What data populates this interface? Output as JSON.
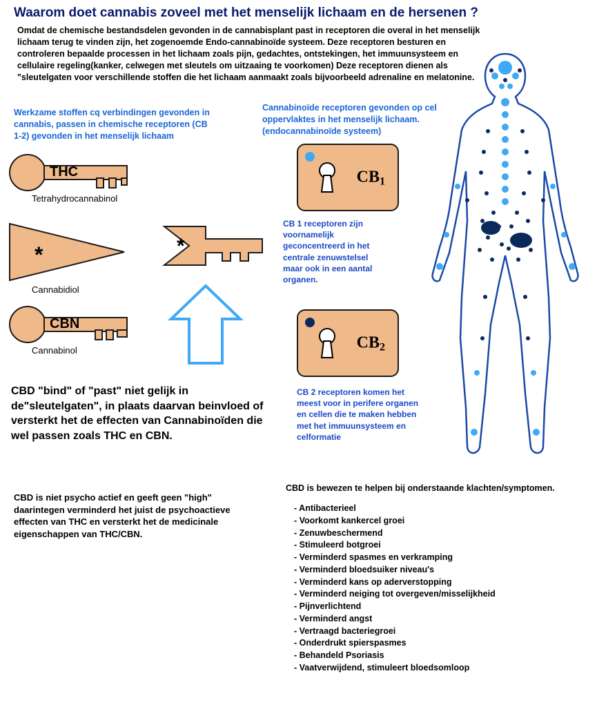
{
  "title": "Waarom doet cannabis zoveel met het menselijk lichaam en de hersenen ?",
  "intro": "Omdat de chemische bestandsdelen gevonden in de cannabisplant past in receptoren die overal in het menselijk lichaam terug te vinden zijn, het zogenoemde Endo-cannabinoïde systeem. Deze receptoren besturen en controleren bepaalde processen in het lichaam zoals pijn, gedachtes, ontstekingen, het immuunsysteem en cellulaire regeling(kanker, celwegen met sleutels om uitzaaing te voorkomen) Deze receptoren dienen als \"sleutelgaten voor verschillende stoffen die het lichaam aanmaakt zoals bijvoorbeeld adrenaline en melatonine.",
  "left_blue": "Werkzame stoffen cq verbindingen gevonden in cannabis, passen in chemische receptoren (CB 1-2) gevonden in het menselijk lichaam",
  "right_blue": "Cannabinoïde receptoren gevonden op cel oppervlaktes in het menselijk lichaam. (endocannabinoïde systeem)",
  "keys": {
    "thc": {
      "abbr": "THC",
      "full": "Tetrahydrocannabinol"
    },
    "cbd": {
      "abbr": "*",
      "full": "Cannabidiol"
    },
    "cbn": {
      "abbr": "CBN",
      "full": "Cannabinol"
    }
  },
  "receptors": {
    "cb1": {
      "label": "CB",
      "sub": "1",
      "dot_color": "#3fa9f5",
      "desc": "CB 1 receptoren zijn voornamelijk geconcentreerd in het centrale zenuwstelsel maar ook in een aantal organen."
    },
    "cb2": {
      "label": "CB",
      "sub": "2",
      "dot_color": "#0a2a5c",
      "desc": "CB 2 receptoren komen het meest voor in perifere organen en cellen die te maken hebben met het immuunsysteem en celformatie"
    }
  },
  "cbd_bind": "CBD \"bind\" of \"past\" niet gelijk in de\"sleutelgaten\", in plaats daarvan beinvloed of versterkt het de effecten van Cannabinoïden die wel passen zoals THC en CBN.",
  "cbd_nonpsycho": "CBD is niet psycho actief en geeft geen \"high\" daarintegen verminderd het juist de psychoactieve effecten van THC en versterkt het de medicinale eigenschappen van THC/CBN.",
  "symptom_heading": "CBD is bewezen te helpen bij onderstaande klachten/symptomen.",
  "symptoms": [
    "Antibacterieel",
    "Voorkomt kankercel groei",
    "Zenuwbeschermend",
    "Stimuleerd botgroei",
    "Verminderd spasmes en verkramping",
    "Verminderd bloedsuiker niveau's",
    "Verminderd  kans op aderverstopping",
    "Verminderd neiging tot overgeven/misselijkheid",
    "Pijnverlichtend",
    "Verminderd angst",
    "Vertraagd bacteriegroei",
    "Onderdrukt spierspasmes",
    "Behandeld Psoriasis",
    "Vaatverwijdend, stimuleert bloedsomloop"
  ],
  "colors": {
    "shape_fill": "#f0b98a",
    "shape_stroke": "#1a1a1a",
    "arrow_stroke": "#3fa9f5",
    "blue_text": "#1a66d6",
    "dark_blue_text": "#1a49c4",
    "title_color": "#0a1a6b",
    "body_outline": "#1a49a6",
    "dot_light": "#3fa9f5",
    "dot_dark": "#0a2a5c"
  }
}
